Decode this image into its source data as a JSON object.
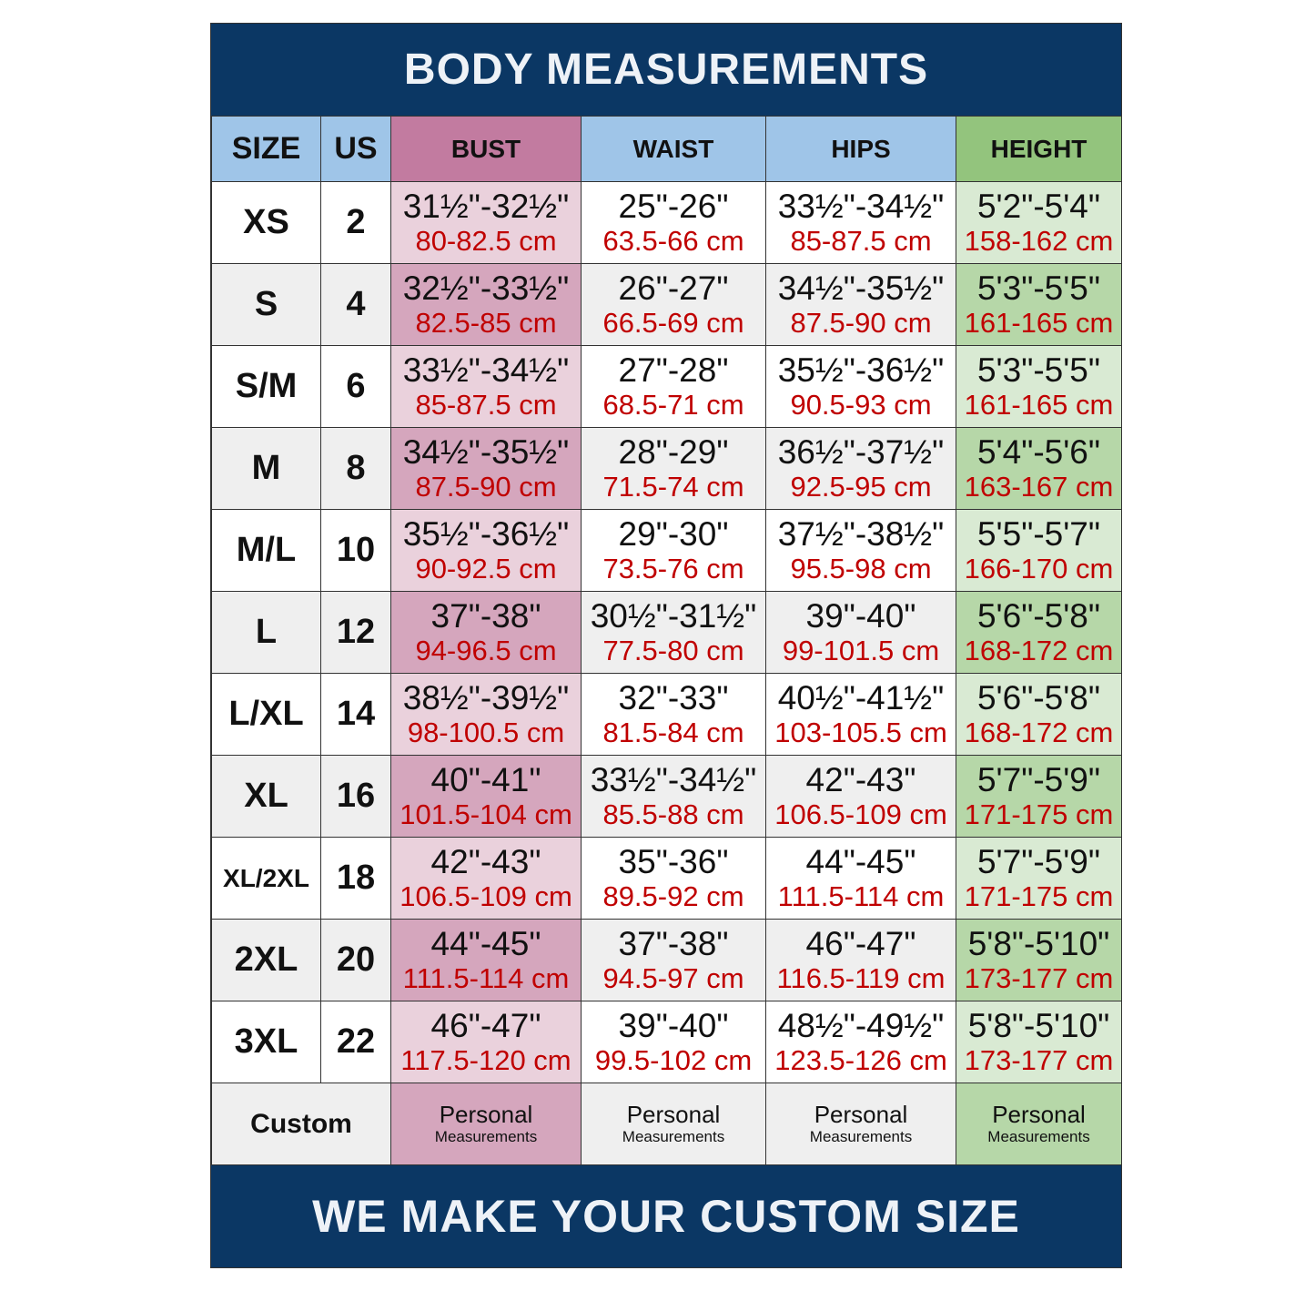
{
  "title": "BODY MEASUREMENTS",
  "footer": "WE MAKE YOUR CUSTOM SIZE",
  "colors": {
    "band": "#0b3764",
    "header_blue": "#9fc5e8",
    "bust": "#c27ba0",
    "height": "#93c47d",
    "metric_text": "#c00000"
  },
  "headers": [
    "SIZE",
    "US",
    "BUST",
    "WAIST",
    "HIPS",
    "HEIGHT"
  ],
  "rows": [
    {
      "size": "XS",
      "us": "2",
      "bust": [
        "31½\"-32½\"",
        "80-82.5 cm"
      ],
      "waist": [
        "25\"-26\"",
        "63.5-66 cm"
      ],
      "hips": [
        "33½\"-34½\"",
        "85-87.5 cm"
      ],
      "height": [
        "5'2\"-5'4\"",
        "158-162 cm"
      ]
    },
    {
      "size": "S",
      "us": "4",
      "bust": [
        "32½\"-33½\"",
        "82.5-85 cm"
      ],
      "waist": [
        "26\"-27\"",
        "66.5-69 cm"
      ],
      "hips": [
        "34½\"-35½\"",
        "87.5-90 cm"
      ],
      "height": [
        "5'3\"-5'5\"",
        "161-165 cm"
      ]
    },
    {
      "size": "S/M",
      "us": "6",
      "bust": [
        "33½\"-34½\"",
        "85-87.5 cm"
      ],
      "waist": [
        "27\"-28\"",
        "68.5-71 cm"
      ],
      "hips": [
        "35½\"-36½\"",
        "90.5-93 cm"
      ],
      "height": [
        "5'3\"-5'5\"",
        "161-165 cm"
      ]
    },
    {
      "size": "M",
      "us": "8",
      "bust": [
        "34½\"-35½\"",
        "87.5-90 cm"
      ],
      "waist": [
        "28\"-29\"",
        "71.5-74 cm"
      ],
      "hips": [
        "36½\"-37½\"",
        "92.5-95 cm"
      ],
      "height": [
        "5'4\"-5'6\"",
        "163-167 cm"
      ]
    },
    {
      "size": "M/L",
      "us": "10",
      "bust": [
        "35½\"-36½\"",
        "90-92.5 cm"
      ],
      "waist": [
        "29\"-30\"",
        "73.5-76 cm"
      ],
      "hips": [
        "37½\"-38½\"",
        "95.5-98 cm"
      ],
      "height": [
        "5'5\"-5'7\"",
        "166-170 cm"
      ]
    },
    {
      "size": "L",
      "us": "12",
      "bust": [
        "37\"-38\"",
        "94-96.5 cm"
      ],
      "waist": [
        "30½\"-31½\"",
        "77.5-80 cm"
      ],
      "hips": [
        "39\"-40\"",
        "99-101.5 cm"
      ],
      "height": [
        "5'6\"-5'8\"",
        "168-172 cm"
      ]
    },
    {
      "size": "L/XL",
      "us": "14",
      "bust": [
        "38½\"-39½\"",
        "98-100.5 cm"
      ],
      "waist": [
        "32\"-33\"",
        "81.5-84 cm"
      ],
      "hips": [
        "40½\"-41½\"",
        "103-105.5 cm"
      ],
      "height": [
        "5'6\"-5'8\"",
        "168-172 cm"
      ]
    },
    {
      "size": "XL",
      "us": "16",
      "bust": [
        "40\"-41\"",
        "101.5-104 cm"
      ],
      "waist": [
        "33½\"-34½\"",
        "85.5-88 cm"
      ],
      "hips": [
        "42\"-43\"",
        "106.5-109 cm"
      ],
      "height": [
        "5'7\"-5'9\"",
        "171-175 cm"
      ]
    },
    {
      "size": "XL/2XL",
      "us": "18",
      "bust": [
        "42\"-43\"",
        "106.5-109 cm"
      ],
      "waist": [
        "35\"-36\"",
        "89.5-92 cm"
      ],
      "hips": [
        "44\"-45\"",
        "111.5-114 cm"
      ],
      "height": [
        "5'7\"-5'9\"",
        "171-175 cm"
      ]
    },
    {
      "size": "2XL",
      "us": "20",
      "bust": [
        "44\"-45\"",
        "111.5-114 cm"
      ],
      "waist": [
        "37\"-38\"",
        "94.5-97 cm"
      ],
      "hips": [
        "46\"-47\"",
        "116.5-119 cm"
      ],
      "height": [
        "5'8\"-5'10\"",
        "173-177 cm"
      ]
    },
    {
      "size": "3XL",
      "us": "22",
      "bust": [
        "46\"-47\"",
        "117.5-120 cm"
      ],
      "waist": [
        "39\"-40\"",
        "99.5-102 cm"
      ],
      "hips": [
        "48½\"-49½\"",
        "123.5-126 cm"
      ],
      "height": [
        "5'8\"-5'10\"",
        "173-177 cm"
      ]
    }
  ],
  "custom": {
    "label": "Custom",
    "line1": "Personal",
    "line2": "Measurements"
  }
}
